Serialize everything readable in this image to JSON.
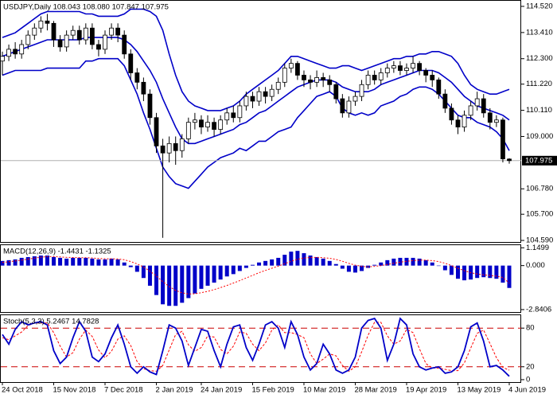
{
  "chart_data": [
    {
      "type": "candlestick",
      "title": "USDJPY,Daily 108.043 108.080 107.847 107.975",
      "open": [
        112.2,
        112.4,
        112.7,
        112.5,
        112.9,
        113.3,
        113.6,
        113.9,
        113.8,
        113.1,
        112.8,
        113.3,
        113.5,
        113.1,
        113.6,
        112.9,
        112.7,
        113.3,
        113.6,
        113.3,
        112.5,
        111.7,
        111.3,
        110.8,
        109.8,
        108.6,
        108.3,
        108.7,
        108.4,
        108.9,
        109.6,
        109.7,
        109.4,
        109.6,
        109.3,
        109.7,
        110.0,
        109.8,
        110.3,
        110.7,
        110.5,
        110.9,
        110.7,
        111.0,
        111.3,
        111.9,
        112.1,
        111.6,
        111.4,
        111.3,
        111.5,
        111.4,
        111.2,
        110.6,
        110.0,
        110.5,
        110.7,
        111.2,
        111.6,
        111.4,
        111.7,
        111.9,
        112.0,
        111.8,
        111.9,
        112.1,
        111.8,
        111.6,
        111.4,
        110.8,
        110.2,
        109.7,
        109.4,
        109.9,
        110.3,
        110.6,
        110.0,
        109.6,
        109.7,
        108.043
      ],
      "high": [
        112.6,
        112.9,
        113.0,
        113.1,
        113.5,
        113.8,
        114.1,
        114.2,
        113.9,
        113.3,
        113.5,
        113.7,
        113.7,
        113.8,
        113.8,
        113.1,
        113.5,
        113.8,
        113.8,
        113.5,
        112.7,
        111.9,
        111.5,
        111.0,
        110.0,
        108.9,
        109.0,
        109.0,
        109.1,
        109.8,
        110.0,
        109.9,
        109.9,
        109.8,
        109.9,
        110.2,
        110.3,
        110.5,
        110.9,
        110.9,
        111.1,
        111.1,
        111.2,
        111.5,
        112.1,
        112.3,
        112.2,
        111.8,
        111.6,
        111.8,
        111.7,
        111.6,
        111.3,
        110.8,
        110.7,
        110.9,
        111.4,
        111.8,
        111.8,
        111.9,
        112.1,
        112.2,
        112.2,
        112.1,
        112.4,
        112.2,
        111.9,
        111.8,
        111.5,
        111.0,
        110.4,
        109.9,
        110.1,
        110.5,
        110.9,
        110.8,
        110.2,
        109.9,
        109.8,
        108.08
      ],
      "low": [
        111.6,
        112.2,
        112.3,
        112.3,
        112.7,
        113.1,
        113.4,
        113.5,
        112.8,
        112.6,
        112.6,
        113.1,
        112.9,
        112.9,
        112.7,
        112.4,
        112.5,
        113.1,
        113.0,
        112.3,
        111.4,
        111.0,
        110.5,
        109.5,
        108.3,
        104.7,
        107.9,
        107.8,
        108.1,
        108.7,
        109.3,
        109.1,
        109.2,
        109.0,
        109.1,
        109.5,
        109.6,
        109.6,
        110.1,
        110.2,
        110.3,
        110.4,
        110.5,
        110.8,
        111.1,
        111.7,
        111.4,
        111.1,
        111.0,
        111.1,
        111.1,
        110.9,
        110.4,
        109.8,
        109.8,
        110.3,
        110.5,
        111.0,
        111.2,
        111.2,
        111.5,
        111.7,
        111.6,
        111.6,
        111.7,
        111.6,
        111.3,
        111.1,
        110.6,
        110.0,
        109.5,
        109.1,
        109.2,
        109.7,
        110.1,
        109.8,
        109.3,
        109.4,
        107.9,
        107.847
      ],
      "close": [
        112.4,
        112.7,
        112.5,
        112.9,
        113.3,
        113.6,
        113.9,
        113.8,
        113.1,
        112.8,
        113.3,
        113.5,
        113.1,
        113.6,
        112.9,
        112.7,
        113.3,
        113.6,
        113.3,
        112.5,
        111.7,
        111.3,
        110.8,
        109.8,
        108.6,
        108.3,
        108.7,
        108.4,
        108.9,
        109.6,
        109.7,
        109.4,
        109.6,
        109.3,
        109.7,
        110.0,
        109.8,
        110.3,
        110.7,
        110.5,
        110.9,
        110.7,
        111.0,
        111.3,
        111.9,
        112.1,
        111.6,
        111.4,
        111.3,
        111.5,
        111.4,
        111.2,
        110.6,
        110.0,
        110.5,
        110.7,
        111.2,
        111.6,
        111.4,
        111.7,
        111.9,
        112.0,
        111.8,
        111.9,
        112.1,
        111.8,
        111.6,
        111.4,
        110.8,
        110.2,
        109.7,
        109.4,
        109.9,
        110.3,
        110.6,
        110.0,
        109.6,
        109.7,
        108.05,
        107.975
      ],
      "up_color": "#ffffff",
      "down_color": "#000000",
      "bands": {
        "color": "#0000c8",
        "upper": [
          113.2,
          113.3,
          113.4,
          113.6,
          113.8,
          114.0,
          114.2,
          114.3,
          114.3,
          114.3,
          114.3,
          114.3,
          114.3,
          114.2,
          114.2,
          114.1,
          114.1,
          114.1,
          114.1,
          114.2,
          114.4,
          114.4,
          114.4,
          114.3,
          114.1,
          113.5,
          112.5,
          111.6,
          110.9,
          110.5,
          110.3,
          110.2,
          110.1,
          110.1,
          110.1,
          110.2,
          110.3,
          110.5,
          110.8,
          111.0,
          111.2,
          111.4,
          111.6,
          111.8,
          112.1,
          112.4,
          112.4,
          112.3,
          112.2,
          112.1,
          112.0,
          111.9,
          111.9,
          112.0,
          112.0,
          111.9,
          111.8,
          111.9,
          112.0,
          112.1,
          112.2,
          112.3,
          112.3,
          112.4,
          112.4,
          112.5,
          112.5,
          112.6,
          112.6,
          112.5,
          112.4,
          112.1,
          111.6,
          111.2,
          111.0,
          110.9,
          110.8,
          110.8,
          110.9,
          111.0
        ],
        "middle": [
          112.4,
          112.5,
          112.6,
          112.7,
          112.8,
          112.9,
          113.0,
          113.1,
          113.1,
          113.1,
          113.1,
          113.1,
          113.1,
          113.2,
          113.2,
          113.2,
          113.2,
          113.2,
          113.2,
          113.1,
          112.9,
          112.6,
          112.2,
          111.8,
          111.3,
          110.6,
          110.0,
          109.4,
          108.9,
          108.7,
          108.7,
          108.8,
          108.9,
          109.0,
          109.1,
          109.2,
          109.3,
          109.5,
          109.6,
          109.8,
          110.0,
          110.1,
          110.3,
          110.5,
          110.7,
          110.9,
          111.1,
          111.2,
          111.3,
          111.4,
          111.4,
          111.4,
          111.3,
          111.1,
          111.0,
          110.9,
          110.9,
          110.9,
          111.0,
          111.2,
          111.3,
          111.4,
          111.5,
          111.6,
          111.7,
          111.8,
          111.8,
          111.8,
          111.7,
          111.5,
          111.3,
          111.0,
          110.7,
          110.5,
          110.3,
          110.2,
          110.1,
          110.0,
          109.9,
          109.7
        ],
        "lower": [
          111.6,
          111.7,
          111.8,
          111.8,
          111.8,
          111.8,
          111.8,
          111.9,
          111.9,
          111.9,
          111.9,
          111.9,
          111.9,
          112.2,
          112.2,
          112.3,
          112.3,
          112.3,
          112.3,
          112.0,
          111.4,
          110.8,
          110.0,
          109.3,
          108.5,
          107.7,
          107.3,
          107.0,
          106.9,
          106.8,
          107.1,
          107.4,
          107.7,
          107.9,
          108.1,
          108.2,
          108.3,
          108.5,
          108.4,
          108.6,
          108.8,
          108.8,
          109.0,
          109.2,
          109.3,
          109.4,
          109.8,
          110.1,
          110.4,
          110.7,
          110.8,
          110.9,
          110.7,
          110.2,
          110.0,
          109.9,
          110.0,
          109.9,
          110.0,
          110.3,
          110.4,
          110.5,
          110.7,
          110.8,
          111.0,
          111.1,
          111.1,
          111.0,
          110.8,
          110.5,
          110.2,
          109.9,
          109.8,
          109.8,
          109.6,
          109.5,
          109.4,
          109.2,
          108.9,
          108.4
        ]
      },
      "last_price": 107.975,
      "ylim": [
        104.49,
        114.79
      ],
      "yticks": [
        {
          "value": 114.52,
          "label": "114.520"
        },
        {
          "value": 113.41,
          "label": "113.410"
        },
        {
          "value": 112.3,
          "label": "112.300"
        },
        {
          "value": 111.22,
          "label": "111.220"
        },
        {
          "value": 110.11,
          "label": "110.110"
        },
        {
          "value": 109,
          "label": "109.000"
        },
        {
          "value": 106.78,
          "label": "106.780"
        },
        {
          "value": 105.7,
          "label": "105.700"
        },
        {
          "value": 104.59,
          "label": "104.590"
        }
      ]
    },
    {
      "type": "bar",
      "title": "MACD(12,26,9) -1.4431 -1.1325",
      "values": [
        0.3,
        0.35,
        0.4,
        0.5,
        0.55,
        0.6,
        0.65,
        0.65,
        0.55,
        0.5,
        0.45,
        0.5,
        0.5,
        0.5,
        0.45,
        0.4,
        0.4,
        0.45,
        0.4,
        0.2,
        -0.1,
        -0.4,
        -0.8,
        -1.3,
        -1.9,
        -2.5,
        -2.6,
        -2.6,
        -2.4,
        -2.1,
        -1.8,
        -1.5,
        -1.3,
        -1.1,
        -0.9,
        -0.7,
        -0.55,
        -0.35,
        -0.15,
        0.05,
        0.2,
        0.3,
        0.4,
        0.5,
        0.7,
        0.9,
        0.95,
        0.8,
        0.65,
        0.55,
        0.45,
        0.3,
        0.1,
        -0.2,
        -0.4,
        -0.45,
        -0.35,
        -0.15,
        0.05,
        0.2,
        0.35,
        0.45,
        0.5,
        0.5,
        0.5,
        0.45,
        0.35,
        0.2,
        0.0,
        -0.3,
        -0.6,
        -0.85,
        -0.95,
        -0.9,
        -0.8,
        -0.75,
        -0.8,
        -0.85,
        -1.1,
        -1.4431
      ],
      "color": "#0000c8",
      "signal": [
        0.2,
        0.25,
        0.3,
        0.35,
        0.42,
        0.48,
        0.54,
        0.58,
        0.58,
        0.56,
        0.53,
        0.52,
        0.51,
        0.51,
        0.49,
        0.46,
        0.44,
        0.44,
        0.43,
        0.38,
        0.26,
        0.11,
        -0.09,
        -0.36,
        -0.67,
        -1.04,
        -1.35,
        -1.6,
        -1.76,
        -1.83,
        -1.82,
        -1.75,
        -1.66,
        -1.55,
        -1.42,
        -1.28,
        -1.13,
        -0.97,
        -0.8,
        -0.63,
        -0.46,
        -0.31,
        -0.17,
        -0.04,
        0.12,
        0.28,
        0.41,
        0.49,
        0.52,
        0.53,
        0.51,
        0.47,
        0.4,
        0.28,
        0.14,
        0.03,
        -0.05,
        -0.08,
        -0.05,
        0.0,
        0.07,
        0.15,
        0.22,
        0.28,
        0.32,
        0.35,
        0.35,
        0.32,
        0.26,
        0.15,
        0.0,
        -0.17,
        -0.33,
        -0.46,
        -0.54,
        -0.6,
        -0.64,
        -0.68,
        -0.77,
        -1.1325
      ],
      "signal_color": "#ff0000",
      "ylim": [
        -3.05,
        1.37
      ],
      "yticks": [
        1.1499,
        {
          "value": 0,
          "label": "0.000"
        },
        -2.8406
      ]
    },
    {
      "type": "line",
      "title": "Stoch(5,3,3) 5.2467 14.7828",
      "categories": [
        "24 Oct 2018",
        null,
        null,
        null,
        null,
        null,
        null,
        null,
        "15 Nov 2018",
        null,
        null,
        null,
        null,
        null,
        null,
        null,
        "7 Dec 2018",
        null,
        null,
        null,
        null,
        null,
        null,
        null,
        "2 Jan 2019",
        null,
        null,
        null,
        null,
        null,
        null,
        "24 Jan 2019",
        null,
        null,
        null,
        null,
        null,
        null,
        null,
        "15 Feb 2019",
        null,
        null,
        null,
        null,
        null,
        null,
        null,
        "10 Mar 2019",
        null,
        null,
        null,
        null,
        null,
        null,
        null,
        "28 Mar 2019",
        null,
        null,
        null,
        null,
        null,
        null,
        null,
        "19 Apr 2019",
        null,
        null,
        null,
        null,
        null,
        null,
        null,
        "13 May 2019",
        null,
        null,
        null,
        null,
        null,
        null,
        null,
        "4 Jun 2019"
      ],
      "values": [
        70,
        55,
        78,
        90,
        85,
        88,
        90,
        85,
        45,
        25,
        35,
        65,
        90,
        75,
        35,
        28,
        40,
        65,
        85,
        55,
        20,
        10,
        20,
        12,
        8,
        45,
        85,
        80,
        60,
        22,
        50,
        78,
        75,
        45,
        20,
        55,
        82,
        85,
        50,
        30,
        55,
        85,
        90,
        80,
        50,
        90,
        70,
        35,
        15,
        25,
        55,
        40,
        15,
        10,
        15,
        35,
        80,
        92,
        95,
        80,
        30,
        55,
        95,
        85,
        40,
        20,
        15,
        18,
        20,
        10,
        12,
        20,
        45,
        82,
        88,
        60,
        20,
        22,
        15,
        5.2467
      ],
      "color": "#0000c8",
      "signal": [
        65,
        62,
        68,
        74,
        84,
        88,
        88,
        88,
        73,
        52,
        35,
        42,
        63,
        77,
        67,
        46,
        34,
        44,
        63,
        68,
        53,
        28,
        17,
        14,
        13,
        22,
        46,
        70,
        75,
        54,
        44,
        50,
        68,
        66,
        47,
        40,
        52,
        74,
        72,
        55,
        45,
        57,
        77,
        85,
        73,
        73,
        70,
        65,
        40,
        25,
        32,
        40,
        37,
        22,
        13,
        20,
        43,
        69,
        89,
        89,
        68,
        55,
        60,
        78,
        73,
        48,
        25,
        18,
        18,
        16,
        14,
        14,
        26,
        49,
        72,
        77,
        56,
        34,
        19,
        14.7828
      ],
      "signal_color": "#ff0000",
      "levels": [
        80,
        20
      ],
      "level_color": "#cc0000",
      "ylim": [
        -5,
        101.25
      ],
      "yticks": [
        80,
        20,
        0
      ]
    }
  ]
}
